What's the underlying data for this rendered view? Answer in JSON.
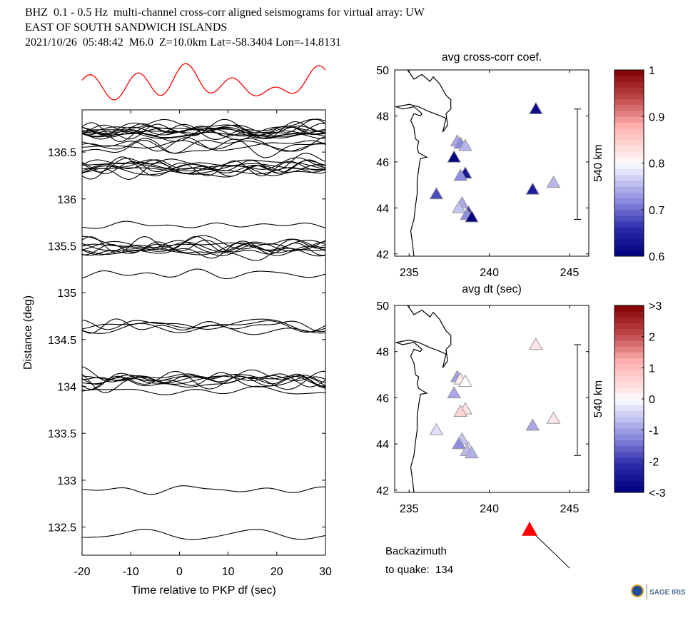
{
  "header": {
    "line1": "BHZ  0.1 - 0.5 Hz  multi-channel cross-corr aligned seismograms for virtual array: UW",
    "line2": "EAST OF SOUTH SANDWICH ISLANDS",
    "line3": "2021/10/26  05:48:42  M6.0  Z=10.0km Lat=-58.3404 Lon=-14.8131"
  },
  "backazimuth": {
    "line1": "Backazimuth",
    "line2": "to quake:  134",
    "value_deg": 134,
    "arrow_color": "#ff0000"
  },
  "logo": {
    "text": "SAGE IRIS"
  },
  "chart_data": [
    {
      "type": "line",
      "name": "record-section",
      "title": "",
      "xlabel": "Time relative to PKP df (sec)",
      "ylabel": "Distance (deg)",
      "xlim": [
        -20,
        30
      ],
      "ylim": [
        132.2,
        136.95
      ],
      "xticks": [
        -20,
        -10,
        0,
        10,
        20,
        30
      ],
      "xtick_labels": [
        "-20",
        "-10",
        "0",
        "10",
        "20",
        "30"
      ],
      "yticks": [
        132.5,
        133,
        133.5,
        134,
        134.5,
        135,
        135.5,
        136,
        136.5
      ],
      "ytick_labels": [
        "132.5",
        "133",
        "133.5",
        "134",
        "134.5",
        "135",
        "135.5",
        "136",
        "136.5"
      ],
      "stack_trace_color": "#ff0000",
      "trace_color": "#000000",
      "trace_groups": [
        {
          "distance": 136.72,
          "count": 12
        },
        {
          "distance": 136.56,
          "count": 4
        },
        {
          "distance": 136.33,
          "count": 10
        },
        {
          "distance": 135.72,
          "count": 1
        },
        {
          "distance": 135.48,
          "count": 9
        },
        {
          "distance": 135.2,
          "count": 1
        },
        {
          "distance": 134.64,
          "count": 4
        },
        {
          "distance": 134.08,
          "count": 8
        },
        {
          "distance": 133.95,
          "count": 1
        },
        {
          "distance": 132.9,
          "count": 1
        },
        {
          "distance": 132.42,
          "count": 1
        }
      ]
    },
    {
      "type": "scatter",
      "name": "avg-cross-corr-map",
      "title": "avg cross-corr coef.",
      "xlabel": "avg dt (sec)",
      "ylabel": "",
      "xlim": [
        234.1,
        246.2
      ],
      "ylim": [
        41.9,
        50
      ],
      "xticks": [
        235,
        240,
        245
      ],
      "xtick_labels": [
        "235",
        "240",
        "245"
      ],
      "yticks": [
        42,
        44,
        46,
        48,
        50
      ],
      "ytick_labels": [
        "42",
        "44",
        "46",
        "48",
        "50"
      ],
      "scale_bar_label": "540 km",
      "colorbar": {
        "range": [
          0.6,
          1
        ],
        "ticks": [
          "0.6",
          "0.7",
          "0.8",
          "0.9",
          "1"
        ],
        "center": 0.8
      },
      "points": [
        {
          "lon": 242.9,
          "lat": 48.3,
          "value": 0.62
        },
        {
          "lon": 238.0,
          "lat": 46.9,
          "value": 0.74
        },
        {
          "lon": 238.2,
          "lat": 46.8,
          "value": 0.72
        },
        {
          "lon": 238.5,
          "lat": 46.7,
          "value": 0.75
        },
        {
          "lon": 237.8,
          "lat": 46.2,
          "value": 0.6
        },
        {
          "lon": 238.5,
          "lat": 45.5,
          "value": 0.63
        },
        {
          "lon": 238.2,
          "lat": 45.4,
          "value": 0.72
        },
        {
          "lon": 236.7,
          "lat": 44.6,
          "value": 0.68
        },
        {
          "lon": 242.7,
          "lat": 44.8,
          "value": 0.64
        },
        {
          "lon": 244.0,
          "lat": 45.1,
          "value": 0.75
        },
        {
          "lon": 238.3,
          "lat": 44.2,
          "value": 0.74
        },
        {
          "lon": 238.1,
          "lat": 44.0,
          "value": 0.76
        },
        {
          "lon": 238.7,
          "lat": 43.8,
          "value": 0.66
        },
        {
          "lon": 238.6,
          "lat": 43.7,
          "value": 0.72
        },
        {
          "lon": 238.9,
          "lat": 43.6,
          "value": 0.6
        }
      ]
    },
    {
      "type": "scatter",
      "name": "avg-dt-map",
      "title": "avg dt (sec)",
      "xlabel": "",
      "ylabel": "",
      "xlim": [
        234.1,
        246.2
      ],
      "ylim": [
        41.9,
        50
      ],
      "xticks": [
        235,
        240,
        245
      ],
      "xtick_labels": [
        "235",
        "240",
        "245"
      ],
      "yticks": [
        42,
        44,
        46,
        48,
        50
      ],
      "ytick_labels": [
        "42",
        "44",
        "46",
        "48",
        "50"
      ],
      "scale_bar_label": "540 km",
      "colorbar": {
        "range": [
          -3,
          3
        ],
        "ticks": [
          "<-3",
          "-2",
          "-1",
          "0",
          "1",
          "2",
          ">3"
        ],
        "center": 0
      },
      "points": [
        {
          "lon": 242.9,
          "lat": 48.3,
          "value": 0.3
        },
        {
          "lon": 238.0,
          "lat": 46.9,
          "value": -1.0
        },
        {
          "lon": 238.2,
          "lat": 46.8,
          "value": 0.2
        },
        {
          "lon": 238.5,
          "lat": 46.7,
          "value": 0.0
        },
        {
          "lon": 237.8,
          "lat": 46.2,
          "value": -0.9
        },
        {
          "lon": 238.5,
          "lat": 45.5,
          "value": 0.3
        },
        {
          "lon": 238.2,
          "lat": 45.4,
          "value": 0.6
        },
        {
          "lon": 236.7,
          "lat": 44.6,
          "value": -0.3
        },
        {
          "lon": 242.7,
          "lat": 44.8,
          "value": -0.9
        },
        {
          "lon": 244.0,
          "lat": 45.1,
          "value": 0.3
        },
        {
          "lon": 238.3,
          "lat": 44.2,
          "value": -0.6
        },
        {
          "lon": 238.1,
          "lat": 44.0,
          "value": -1.2
        },
        {
          "lon": 238.7,
          "lat": 43.8,
          "value": -0.3
        },
        {
          "lon": 238.6,
          "lat": 43.7,
          "value": -0.7
        },
        {
          "lon": 238.9,
          "lat": 43.6,
          "value": -0.8
        }
      ]
    }
  ]
}
